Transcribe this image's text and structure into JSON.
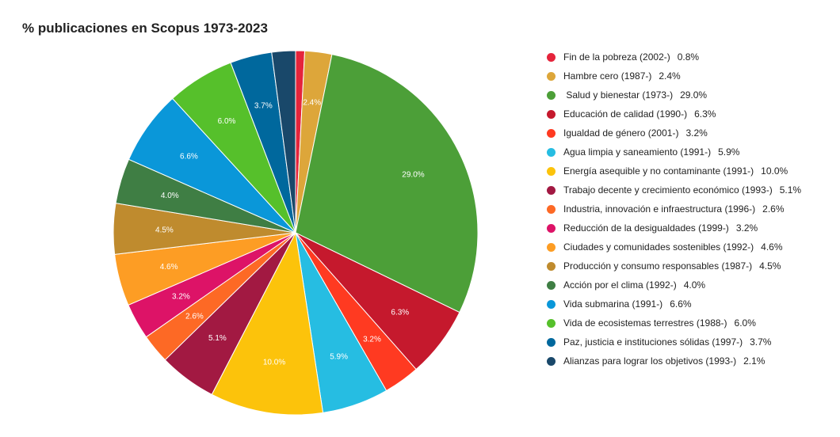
{
  "chart_data": {
    "type": "pie",
    "title": "% publicaciones en Scopus 1973-2023",
    "slices": [
      {
        "label": "Fin de la pobreza (2002-)",
        "value": 0.8,
        "display": "0.8%",
        "color": "#e5243b",
        "show_label": false
      },
      {
        "label": "Hambre cero (1987-)",
        "value": 2.4,
        "display": "2.4%",
        "color": "#dda63a",
        "show_label": true
      },
      {
        "label": " Salud y bienestar (1973-)",
        "value": 29.0,
        "display": "29.0%",
        "color": "#4c9f38",
        "show_label": true
      },
      {
        "label": "Educación de calidad (1990-)",
        "value": 6.3,
        "display": "6.3%",
        "color": "#c5192d",
        "show_label": true
      },
      {
        "label": "Igualdad de género (2001-)",
        "value": 3.2,
        "display": "3.2%",
        "color": "#ff3a21",
        "show_label": true
      },
      {
        "label": "Agua limpia y saneamiento (1991-)",
        "value": 5.9,
        "display": "5.9%",
        "color": "#26bde2",
        "show_label": true
      },
      {
        "label": "Energía asequible y no contaminante (1991-)",
        "value": 10.0,
        "display": "10.0%",
        "color": "#fcc30b",
        "show_label": true
      },
      {
        "label": "Trabajo decente y crecimiento económico (1993-)",
        "value": 5.1,
        "display": "5.1%",
        "color": "#a21942",
        "show_label": true
      },
      {
        "label": "Industria, innovación e infraestructura (1996-)",
        "value": 2.6,
        "display": "2.6%",
        "color": "#fd6925",
        "show_label": true
      },
      {
        "label": "Reducción de la desigualdades (1999-)",
        "value": 3.2,
        "display": "3.2%",
        "color": "#dd1367",
        "show_label": true
      },
      {
        "label": "Ciudades y comunidades sostenibles (1992-)",
        "value": 4.6,
        "display": "4.6%",
        "color": "#fd9d24",
        "show_label": true
      },
      {
        "label": "Producción y consumo responsables (1987-)",
        "value": 4.5,
        "display": "4.5%",
        "color": "#bf8b2e",
        "show_label": true
      },
      {
        "label": "Acción por el clima (1992-)",
        "value": 4.0,
        "display": "4.0%",
        "color": "#3f7e44",
        "show_label": true
      },
      {
        "label": "Vida submarina (1991-)",
        "value": 6.6,
        "display": "6.6%",
        "color": "#0a97d9",
        "show_label": true
      },
      {
        "label": "Vida de ecosistemas terrestres (1988-)",
        "value": 6.0,
        "display": "6.0%",
        "color": "#56c02b",
        "show_label": true
      },
      {
        "label": "Paz, justicia e instituciones sólidas (1997-)",
        "value": 3.7,
        "display": "3.7%",
        "color": "#00689d",
        "show_label": true
      },
      {
        "label": "Alianzas para lograr los objetivos (1993-)",
        "value": 2.1,
        "display": "2.1%",
        "color": "#19486a",
        "show_label": false
      }
    ],
    "legend_position": "right"
  }
}
